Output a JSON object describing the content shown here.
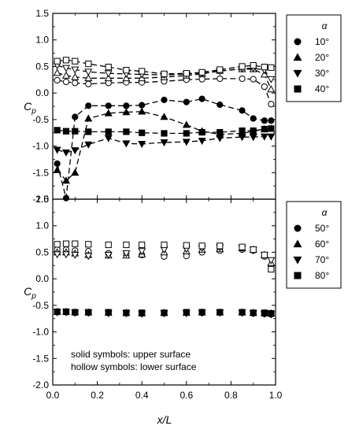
{
  "chart_data": [
    {
      "type": "line",
      "panel": "top",
      "ylabel": "C_p",
      "ylim": [
        -2.0,
        1.5
      ],
      "xlim": [
        0.0,
        1.0
      ],
      "yticks": [
        "1.5",
        "1.0",
        "0.5",
        "0.0",
        "-0.5",
        "-1.0",
        "-1.5",
        "-2.0"
      ],
      "legend_title": "α",
      "legend_position": "right",
      "series": [
        {
          "name": "10°",
          "marker": "circle",
          "surface": "upper",
          "points": [
            [
              0.02,
              -1.33
            ],
            [
              0.06,
              -1.98
            ],
            [
              0.1,
              -0.45
            ],
            [
              0.16,
              -0.24
            ],
            [
              0.25,
              -0.24
            ],
            [
              0.33,
              -0.24
            ],
            [
              0.4,
              -0.23
            ],
            [
              0.5,
              -0.13
            ],
            [
              0.6,
              -0.17
            ],
            [
              0.67,
              -0.11
            ],
            [
              0.75,
              -0.22
            ],
            [
              0.85,
              -0.33
            ],
            [
              0.9,
              -0.48
            ],
            [
              0.95,
              -0.52
            ],
            [
              0.98,
              -0.52
            ]
          ]
        },
        {
          "name": "10°",
          "marker": "circle",
          "surface": "lower",
          "points": [
            [
              0.02,
              0.24
            ],
            [
              0.06,
              0.21
            ],
            [
              0.1,
              0.19
            ],
            [
              0.16,
              0.17
            ],
            [
              0.25,
              0.19
            ],
            [
              0.33,
              0.2
            ],
            [
              0.4,
              0.2
            ],
            [
              0.5,
              0.22
            ],
            [
              0.6,
              0.25
            ],
            [
              0.67,
              0.26
            ],
            [
              0.75,
              0.27
            ],
            [
              0.85,
              0.27
            ],
            [
              0.9,
              0.26
            ],
            [
              0.95,
              0.12
            ],
            [
              0.98,
              -0.21
            ]
          ]
        },
        {
          "name": "20°",
          "marker": "triangle-up",
          "surface": "upper",
          "points": [
            [
              0.02,
              -1.45
            ],
            [
              0.06,
              -1.65
            ],
            [
              0.1,
              -1.5
            ],
            [
              0.16,
              -0.48
            ],
            [
              0.25,
              -0.38
            ],
            [
              0.33,
              -0.36
            ],
            [
              0.4,
              -0.35
            ],
            [
              0.5,
              -0.45
            ],
            [
              0.6,
              -0.6
            ],
            [
              0.67,
              -0.72
            ],
            [
              0.75,
              -0.78
            ],
            [
              0.85,
              -0.76
            ],
            [
              0.9,
              -0.72
            ],
            [
              0.95,
              -0.68
            ],
            [
              0.98,
              -0.67
            ]
          ]
        },
        {
          "name": "20°",
          "marker": "triangle-up",
          "surface": "lower",
          "points": [
            [
              0.02,
              0.38
            ],
            [
              0.06,
              0.33
            ],
            [
              0.1,
              0.3
            ],
            [
              0.16,
              0.28
            ],
            [
              0.25,
              0.28
            ],
            [
              0.33,
              0.28
            ],
            [
              0.4,
              0.28
            ],
            [
              0.5,
              0.3
            ],
            [
              0.6,
              0.33
            ],
            [
              0.67,
              0.36
            ],
            [
              0.75,
              0.42
            ],
            [
              0.85,
              0.45
            ],
            [
              0.9,
              0.45
            ],
            [
              0.95,
              0.35
            ],
            [
              0.98,
              0.07
            ]
          ]
        },
        {
          "name": "30°",
          "marker": "triangle-down",
          "surface": "upper",
          "points": [
            [
              0.02,
              -1.07
            ],
            [
              0.06,
              -1.12
            ],
            [
              0.1,
              -1.08
            ],
            [
              0.16,
              -0.97
            ],
            [
              0.25,
              -0.85
            ],
            [
              0.33,
              -0.95
            ],
            [
              0.4,
              -0.96
            ],
            [
              0.5,
              -0.93
            ],
            [
              0.6,
              -0.92
            ],
            [
              0.67,
              -0.9
            ],
            [
              0.75,
              -0.85
            ],
            [
              0.85,
              -0.83
            ],
            [
              0.9,
              -0.83
            ],
            [
              0.95,
              -0.82
            ],
            [
              0.98,
              -0.82
            ]
          ]
        },
        {
          "name": "30°",
          "marker": "triangle-down",
          "surface": "lower",
          "points": [
            [
              0.02,
              0.52
            ],
            [
              0.06,
              0.47
            ],
            [
              0.1,
              0.44
            ],
            [
              0.16,
              0.4
            ],
            [
              0.25,
              0.37
            ],
            [
              0.33,
              0.36
            ],
            [
              0.4,
              0.35
            ],
            [
              0.5,
              0.34
            ],
            [
              0.6,
              0.36
            ],
            [
              0.67,
              0.37
            ],
            [
              0.75,
              0.41
            ],
            [
              0.85,
              0.46
            ],
            [
              0.9,
              0.47
            ],
            [
              0.95,
              0.43
            ],
            [
              0.98,
              0.26
            ]
          ]
        },
        {
          "name": "40°",
          "marker": "square",
          "surface": "upper",
          "points": [
            [
              0.02,
              -0.7
            ],
            [
              0.06,
              -0.72
            ],
            [
              0.1,
              -0.72
            ],
            [
              0.16,
              -0.73
            ],
            [
              0.25,
              -0.73
            ],
            [
              0.33,
              -0.73
            ],
            [
              0.4,
              -0.75
            ],
            [
              0.5,
              -0.76
            ],
            [
              0.6,
              -0.76
            ],
            [
              0.67,
              -0.74
            ],
            [
              0.75,
              -0.74
            ],
            [
              0.85,
              -0.71
            ],
            [
              0.9,
              -0.71
            ],
            [
              0.95,
              -0.68
            ],
            [
              0.98,
              -0.67
            ]
          ]
        },
        {
          "name": "40°",
          "marker": "square",
          "surface": "lower",
          "points": [
            [
              0.02,
              0.6
            ],
            [
              0.06,
              0.62
            ],
            [
              0.1,
              0.6
            ],
            [
              0.16,
              0.55
            ],
            [
              0.25,
              0.49
            ],
            [
              0.33,
              0.43
            ],
            [
              0.4,
              0.41
            ],
            [
              0.5,
              0.36
            ],
            [
              0.6,
              0.37
            ],
            [
              0.67,
              0.39
            ],
            [
              0.75,
              0.44
            ],
            [
              0.85,
              0.5
            ],
            [
              0.9,
              0.52
            ],
            [
              0.95,
              0.49
            ],
            [
              0.98,
              0.48
            ]
          ]
        }
      ]
    },
    {
      "type": "scatter",
      "panel": "bottom",
      "xlabel": "x/L",
      "ylabel": "C_p",
      "ylim": [
        -2.0,
        1.5
      ],
      "xlim": [
        0.0,
        1.0
      ],
      "xticks": [
        "0.0",
        "0.2",
        "0.4",
        "0.6",
        "0.8",
        "1.0"
      ],
      "yticks": [
        "1.5",
        "1.0",
        "0.5",
        "0.0",
        "-0.5",
        "-1.0",
        "-1.5",
        "-2.0"
      ],
      "legend_title": "α",
      "legend_position": "right",
      "annotation": [
        "solid symbols: upper surface",
        "hollow symbols: lower surface"
      ],
      "series": [
        {
          "name": "50°",
          "marker": "circle",
          "surface": "upper",
          "points": [
            [
              0.02,
              -0.63
            ],
            [
              0.06,
              -0.63
            ],
            [
              0.1,
              -0.64
            ],
            [
              0.16,
              -0.64
            ],
            [
              0.25,
              -0.64
            ],
            [
              0.33,
              -0.65
            ],
            [
              0.4,
              -0.65
            ],
            [
              0.5,
              -0.65
            ],
            [
              0.6,
              -0.64
            ],
            [
              0.67,
              -0.64
            ],
            [
              0.75,
              -0.64
            ],
            [
              0.85,
              -0.64
            ],
            [
              0.9,
              -0.65
            ],
            [
              0.95,
              -0.66
            ],
            [
              0.98,
              -0.67
            ]
          ]
        },
        {
          "name": "50°",
          "marker": "circle",
          "surface": "lower",
          "points": [
            [
              0.02,
              0.55
            ],
            [
              0.06,
              0.55
            ],
            [
              0.1,
              0.53
            ],
            [
              0.16,
              0.52
            ],
            [
              0.25,
              0.48
            ],
            [
              0.33,
              0.46
            ],
            [
              0.4,
              0.45
            ],
            [
              0.5,
              0.42
            ],
            [
              0.6,
              0.43
            ],
            [
              0.67,
              0.5
            ],
            [
              0.75,
              0.53
            ],
            [
              0.85,
              0.55
            ],
            [
              0.9,
              0.53
            ],
            [
              0.95,
              0.42
            ],
            [
              0.98,
              0.25
            ]
          ]
        },
        {
          "name": "60°",
          "marker": "triangle-up",
          "surface": "upper",
          "points": [
            [
              0.02,
              -0.62
            ],
            [
              0.06,
              -0.62
            ],
            [
              0.1,
              -0.63
            ],
            [
              0.16,
              -0.63
            ],
            [
              0.25,
              -0.64
            ],
            [
              0.33,
              -0.64
            ],
            [
              0.4,
              -0.65
            ],
            [
              0.5,
              -0.64
            ],
            [
              0.6,
              -0.64
            ],
            [
              0.67,
              -0.63
            ],
            [
              0.75,
              -0.63
            ],
            [
              0.85,
              -0.63
            ],
            [
              0.9,
              -0.64
            ],
            [
              0.95,
              -0.65
            ],
            [
              0.98,
              -0.65
            ]
          ]
        },
        {
          "name": "60°",
          "marker": "triangle-up",
          "surface": "lower",
          "points": [
            [
              0.02,
              0.5
            ],
            [
              0.06,
              0.5
            ],
            [
              0.1,
              0.48
            ],
            [
              0.16,
              0.45
            ],
            [
              0.25,
              0.44
            ],
            [
              0.33,
              0.44
            ],
            [
              0.4,
              0.46
            ],
            [
              0.5,
              0.5
            ],
            [
              0.6,
              0.52
            ],
            [
              0.67,
              0.55
            ],
            [
              0.75,
              0.56
            ],
            [
              0.85,
              0.58
            ],
            [
              0.9,
              0.55
            ],
            [
              0.95,
              0.45
            ],
            [
              0.98,
              0.3
            ]
          ]
        },
        {
          "name": "70°",
          "marker": "triangle-down",
          "surface": "upper",
          "points": [
            [
              0.02,
              -0.63
            ],
            [
              0.06,
              -0.63
            ],
            [
              0.1,
              -0.64
            ],
            [
              0.16,
              -0.64
            ],
            [
              0.25,
              -0.65
            ],
            [
              0.33,
              -0.65
            ],
            [
              0.4,
              -0.66
            ],
            [
              0.5,
              -0.65
            ],
            [
              0.6,
              -0.65
            ],
            [
              0.67,
              -0.64
            ],
            [
              0.75,
              -0.64
            ],
            [
              0.85,
              -0.64
            ],
            [
              0.9,
              -0.65
            ],
            [
              0.95,
              -0.66
            ],
            [
              0.98,
              -0.67
            ]
          ]
        },
        {
          "name": "70°",
          "marker": "triangle-down",
          "surface": "lower",
          "points": [
            [
              0.02,
              0.46
            ],
            [
              0.06,
              0.46
            ],
            [
              0.1,
              0.45
            ],
            [
              0.16,
              0.43
            ],
            [
              0.25,
              0.45
            ],
            [
              0.33,
              0.48
            ],
            [
              0.4,
              0.52
            ],
            [
              0.5,
              0.55
            ],
            [
              0.6,
              0.56
            ],
            [
              0.67,
              0.58
            ],
            [
              0.75,
              0.59
            ],
            [
              0.85,
              0.58
            ],
            [
              0.9,
              0.55
            ],
            [
              0.95,
              0.45
            ],
            [
              0.98,
              0.35
            ]
          ]
        },
        {
          "name": "80°",
          "marker": "square",
          "surface": "upper",
          "points": [
            [
              0.02,
              -0.62
            ],
            [
              0.06,
              -0.62
            ],
            [
              0.1,
              -0.63
            ],
            [
              0.16,
              -0.63
            ],
            [
              0.25,
              -0.63
            ],
            [
              0.33,
              -0.64
            ],
            [
              0.4,
              -0.64
            ],
            [
              0.5,
              -0.64
            ],
            [
              0.6,
              -0.63
            ],
            [
              0.67,
              -0.63
            ],
            [
              0.75,
              -0.63
            ],
            [
              0.85,
              -0.63
            ],
            [
              0.9,
              -0.64
            ],
            [
              0.95,
              -0.64
            ],
            [
              0.98,
              -0.65
            ]
          ]
        },
        {
          "name": "80°",
          "marker": "square",
          "surface": "lower",
          "points": [
            [
              0.02,
              0.65
            ],
            [
              0.06,
              0.66
            ],
            [
              0.1,
              0.66
            ],
            [
              0.16,
              0.65
            ],
            [
              0.25,
              0.64
            ],
            [
              0.33,
              0.64
            ],
            [
              0.4,
              0.64
            ],
            [
              0.5,
              0.64
            ],
            [
              0.6,
              0.63
            ],
            [
              0.67,
              0.62
            ],
            [
              0.75,
              0.62
            ],
            [
              0.85,
              0.6
            ],
            [
              0.9,
              0.55
            ],
            [
              0.95,
              0.45
            ],
            [
              0.98,
              0.18
            ]
          ]
        }
      ]
    }
  ]
}
